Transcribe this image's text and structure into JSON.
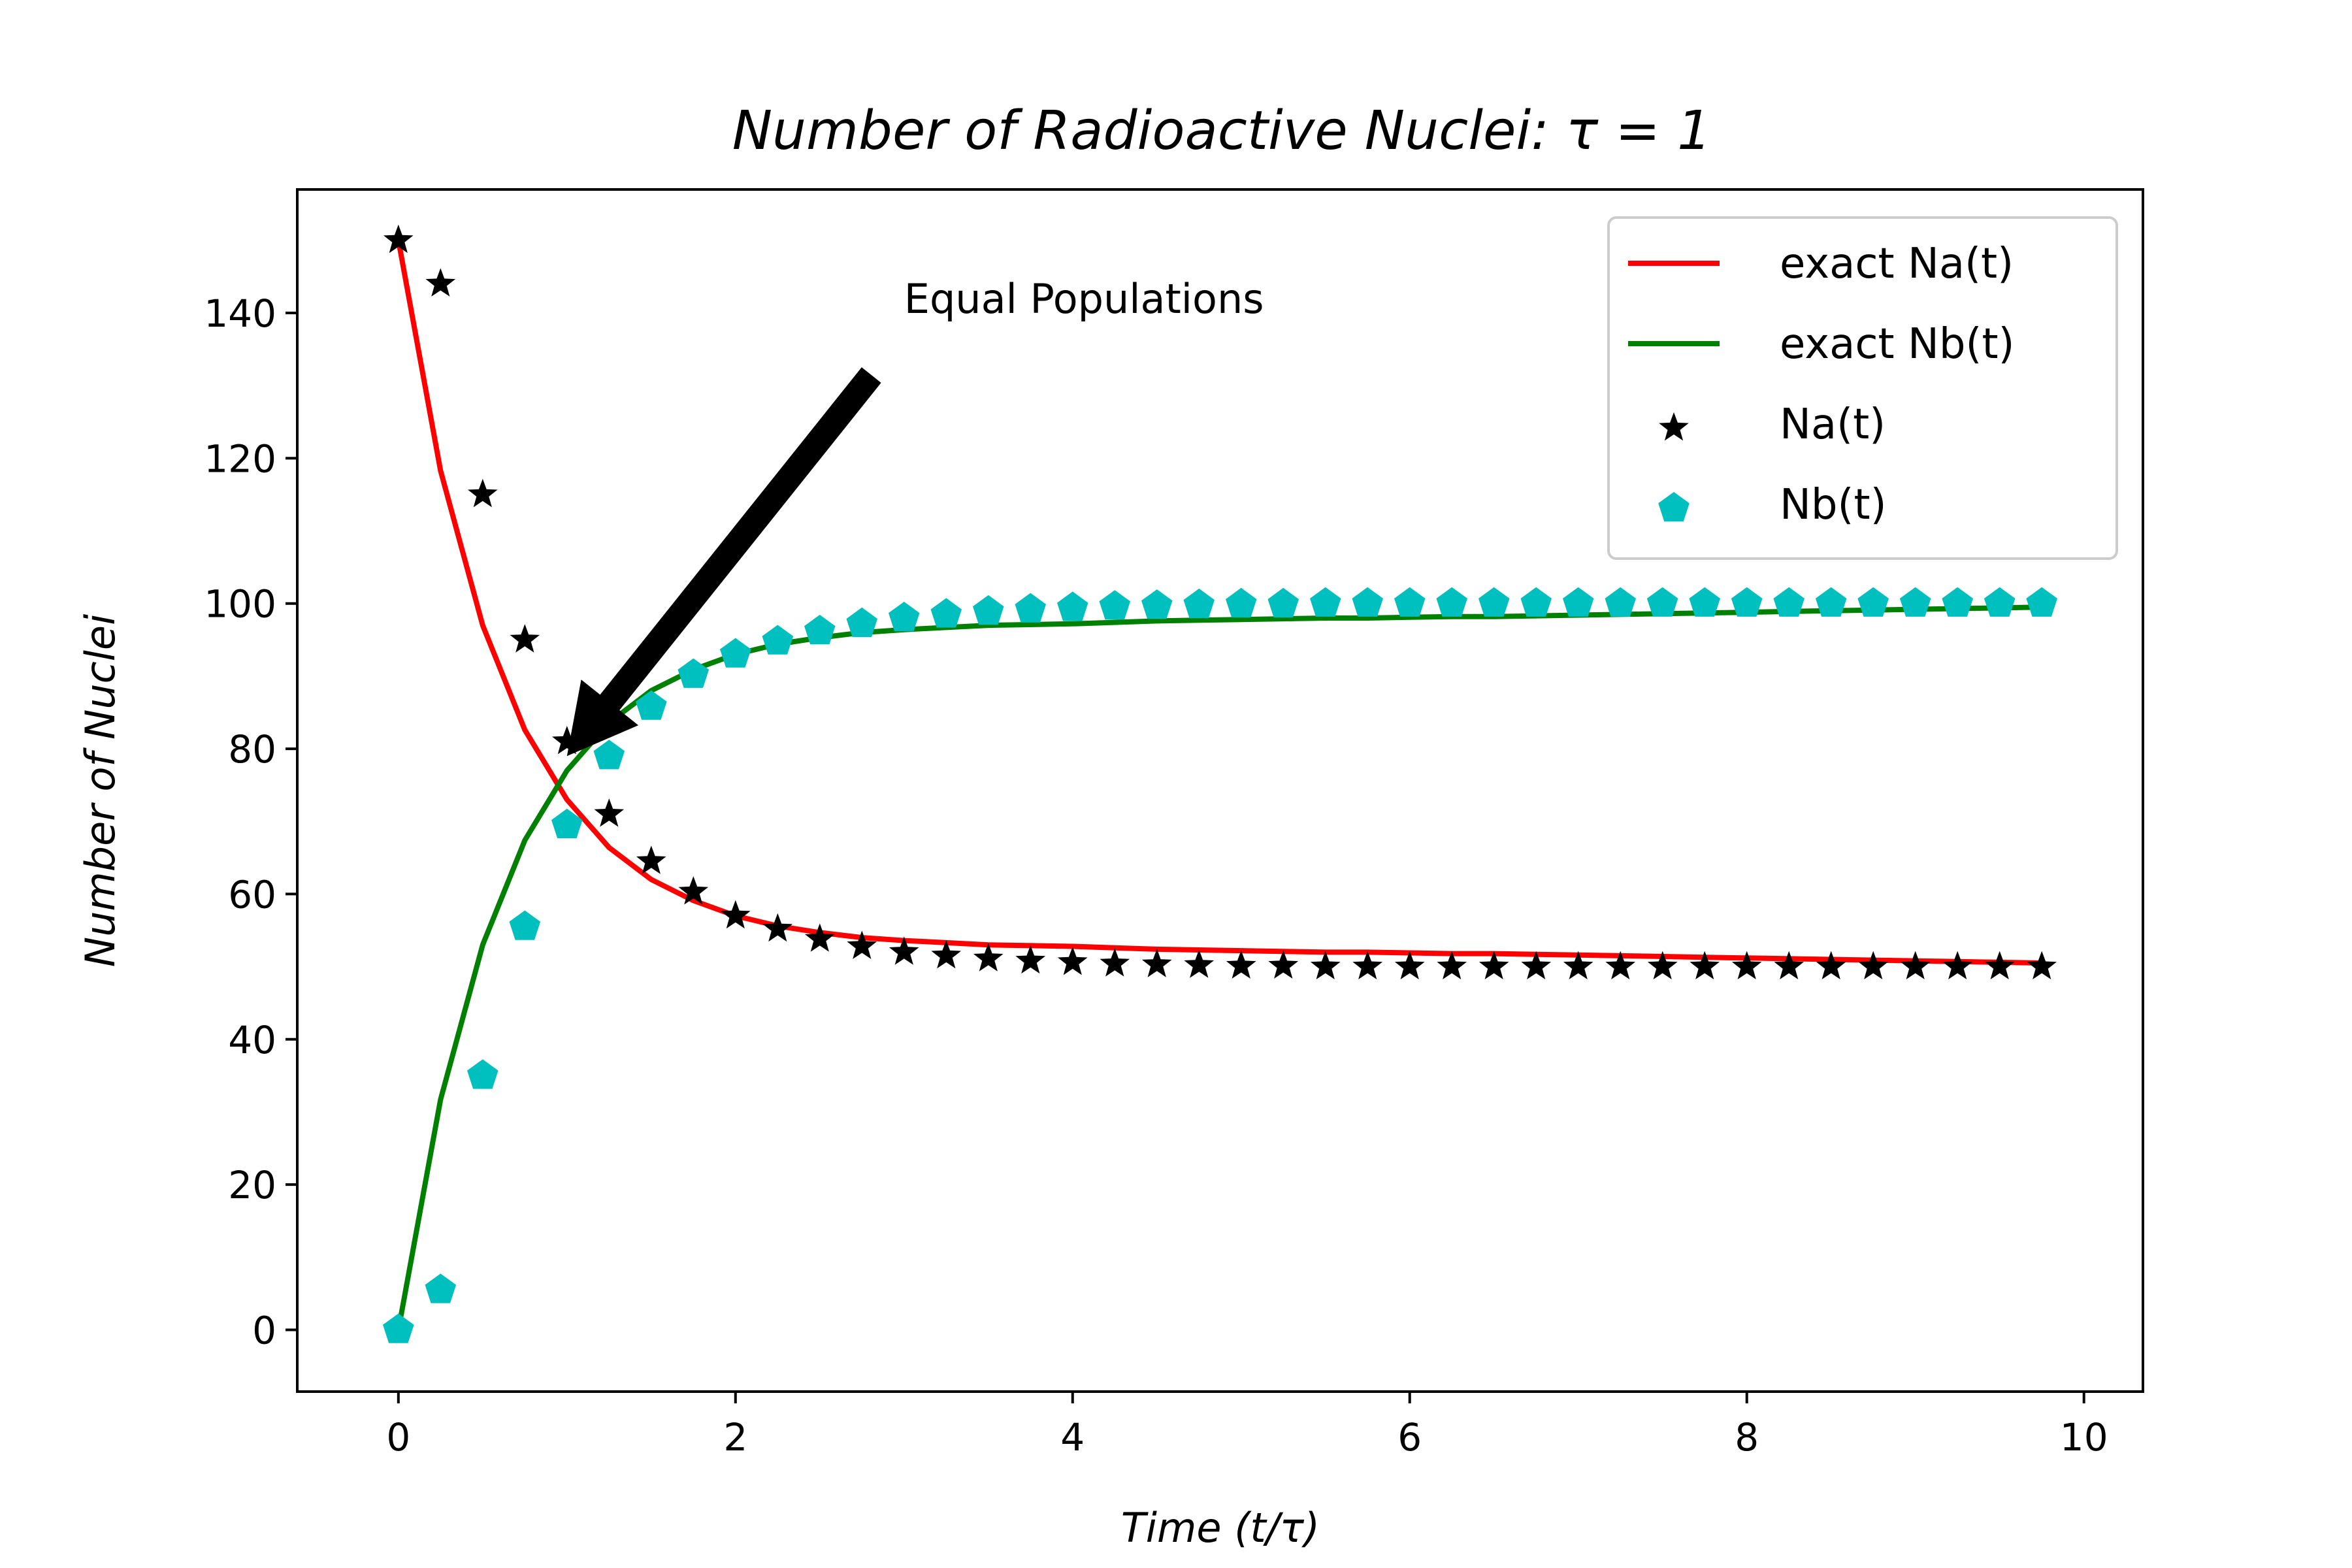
{
  "chart_data": {
    "type": "line",
    "title": "Number of Radioactive Nuclei: τ = 1",
    "xlabel": "Time (t/τ)",
    "ylabel": "Number of Nuclei",
    "xlim": [
      -0.6,
      10.35
    ],
    "ylim": [
      -8.5,
      157
    ],
    "xticks": [
      0,
      2,
      4,
      6,
      8,
      10
    ],
    "yticks": [
      0,
      20,
      40,
      60,
      80,
      100,
      120,
      140
    ],
    "grid": false,
    "legend_position": "top-right",
    "x": [
      0,
      0.25,
      0.5,
      0.75,
      1.0,
      1.25,
      1.5,
      1.75,
      2.0,
      2.25,
      2.5,
      2.75,
      3.0,
      3.25,
      3.5,
      3.75,
      4.0,
      4.25,
      4.5,
      4.75,
      5.0,
      5.25,
      5.5,
      5.75,
      6.0,
      6.25,
      6.5,
      6.75,
      7.0,
      7.25,
      7.5,
      7.75,
      8.0,
      8.25,
      8.5,
      8.75,
      9.0,
      9.25,
      9.5,
      9.75
    ],
    "series": [
      {
        "name": "exact Na(t)",
        "kind": "line",
        "color": "#ff0000",
        "values": [
          150.0,
          118.3,
          97.0,
          82.6,
          73.0,
          66.4,
          62.0,
          59.1,
          57.0,
          55.6,
          54.7,
          54.0,
          53.6,
          53.3,
          53.0,
          52.9,
          52.8,
          52.6,
          52.4,
          52.3,
          52.2,
          52.1,
          52.0,
          52.0,
          51.9,
          51.8,
          51.8,
          51.7,
          51.6,
          51.5,
          51.4,
          51.3,
          51.2,
          51.1,
          51.0,
          50.9,
          50.8,
          50.7,
          50.6,
          50.5
        ]
      },
      {
        "name": "exact Nb(t)",
        "kind": "line",
        "color": "#008000",
        "values": [
          0.0,
          31.7,
          53.0,
          67.4,
          77.0,
          83.6,
          88.0,
          90.9,
          93.0,
          94.4,
          95.3,
          96.0,
          96.4,
          96.7,
          97.0,
          97.1,
          97.2,
          97.4,
          97.6,
          97.7,
          97.8,
          97.9,
          98.0,
          98.0,
          98.1,
          98.2,
          98.2,
          98.3,
          98.4,
          98.5,
          98.6,
          98.7,
          98.8,
          98.9,
          99.0,
          99.1,
          99.2,
          99.3,
          99.4,
          99.5
        ]
      },
      {
        "name": "Na(t)",
        "kind": "marker",
        "marker": "star",
        "color": "#000000",
        "values": [
          150.0,
          144.0,
          115.0,
          95.0,
          81.0,
          71.0,
          64.5,
          60.3,
          57.0,
          55.2,
          53.8,
          52.8,
          52.0,
          51.5,
          51.1,
          50.8,
          50.6,
          50.4,
          50.3,
          50.2,
          50.1,
          50.1,
          50.0,
          50.0,
          50.0,
          50.0,
          50.0,
          50.0,
          50.0,
          50.0,
          50.0,
          50.0,
          50.0,
          50.0,
          50.0,
          50.0,
          50.0,
          50.0,
          50.0,
          50.0
        ]
      },
      {
        "name": "Nb(t)",
        "kind": "marker",
        "marker": "pentagon",
        "color": "#00bfbf",
        "values": [
          0.0,
          5.5,
          35.0,
          55.5,
          69.5,
          79.0,
          85.8,
          90.2,
          93.0,
          94.8,
          96.2,
          97.2,
          98.0,
          98.5,
          98.9,
          99.2,
          99.4,
          99.6,
          99.7,
          99.8,
          99.9,
          99.9,
          100.0,
          100.0,
          100.0,
          100.0,
          100.0,
          100.0,
          100.0,
          100.0,
          100.0,
          100.0,
          100.0,
          100.0,
          100.0,
          100.0,
          100.0,
          100.0,
          100.0,
          100.0
        ]
      }
    ],
    "annotations": [
      {
        "text": "Equal Populations",
        "xytext": [
          3.0,
          140
        ],
        "xy": [
          1.0,
          79
        ]
      }
    ]
  }
}
